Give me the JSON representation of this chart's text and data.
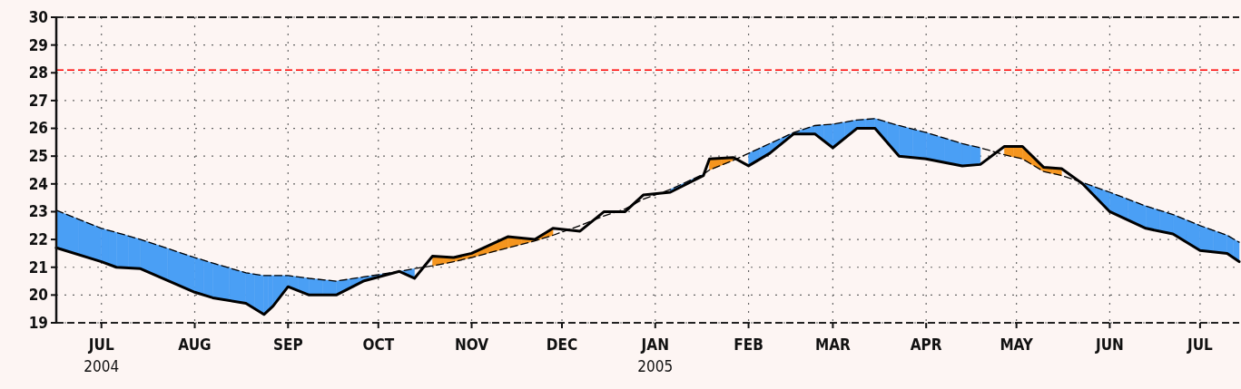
{
  "chart_data": {
    "type": "line",
    "x": [
      "2004-06-16",
      "2004-07-01",
      "2004-07-06",
      "2004-07-14",
      "2004-08-01",
      "2004-08-07",
      "2004-08-18",
      "2004-08-24",
      "2004-08-27",
      "2004-09-01",
      "2004-09-08",
      "2004-09-17",
      "2004-09-26",
      "2004-10-08",
      "2004-10-13",
      "2004-10-19",
      "2004-10-26",
      "2004-11-01",
      "2004-11-13",
      "2004-11-22",
      "2004-11-28",
      "2004-12-07",
      "2004-12-15",
      "2004-12-22",
      "2004-12-28",
      "2005-01-06",
      "2005-01-17",
      "2005-01-19",
      "2005-01-27",
      "2005-02-01",
      "2005-02-08",
      "2005-02-16",
      "2005-02-23",
      "2005-03-01",
      "2005-03-09",
      "2005-03-15",
      "2005-03-23",
      "2005-04-01",
      "2005-04-13",
      "2005-04-19",
      "2005-04-27",
      "2005-05-03",
      "2005-05-10",
      "2005-05-16",
      "2005-05-23",
      "2005-06-01",
      "2005-06-13",
      "2005-06-22",
      "2005-07-01",
      "2005-07-10",
      "2005-07-14"
    ],
    "series": [
      {
        "color": "#000000",
        "line_style": "dashed",
        "values": [
          23.05,
          22.4,
          22.25,
          22.0,
          21.35,
          21.15,
          20.8,
          20.7,
          20.7,
          20.7,
          20.6,
          20.5,
          20.65,
          20.85,
          20.95,
          21.05,
          21.2,
          21.35,
          21.7,
          21.95,
          22.15,
          22.5,
          22.85,
          23.1,
          23.45,
          23.8,
          24.35,
          24.5,
          24.85,
          25.1,
          25.45,
          25.85,
          26.1,
          26.15,
          26.3,
          26.35,
          26.1,
          25.85,
          25.45,
          25.3,
          25.05,
          24.9,
          24.45,
          24.3,
          24.05,
          23.7,
          23.2,
          22.9,
          22.5,
          22.15,
          21.9
        ],
        "upper": [
          23.05,
          22.4,
          22.25,
          22.0,
          21.35,
          21.15,
          20.8,
          20.7,
          20.7,
          20.7,
          20.6,
          20.5,
          20.65,
          20.85,
          20.95,
          null,
          null,
          null,
          null,
          null,
          null,
          null,
          null,
          null,
          null,
          23.8,
          24.35,
          null,
          null,
          25.1,
          25.45,
          25.85,
          26.1,
          26.15,
          26.3,
          26.35,
          26.1,
          25.85,
          25.45,
          25.3,
          null,
          null,
          null,
          null,
          24.05,
          23.7,
          23.2,
          22.9,
          22.5,
          22.15,
          21.9
        ],
        "lower": [
          21.7,
          21.2,
          21.0,
          20.95,
          20.1,
          19.9,
          19.7,
          19.3,
          19.6,
          20.3,
          20.0,
          20.0,
          20.5,
          20.85,
          20.6,
          null,
          null,
          null,
          null,
          null,
          null,
          null,
          null,
          null,
          null,
          23.7,
          24.3,
          null,
          null,
          24.65,
          25.1,
          25.8,
          25.8,
          25.3,
          26.0,
          26.0,
          25.0,
          24.9,
          24.65,
          24.7,
          null,
          null,
          null,
          null,
          24.0,
          23.0,
          22.4,
          22.2,
          21.6,
          21.5,
          21.2
        ],
        "colors": [
          "#4a9ff5",
          "#4a9ff5",
          "#4a9ff5",
          "#4a9ff5",
          "#4a9ff5",
          "#4a9ff5",
          "#4a9ff5",
          "#4a9ff5",
          "#4a9ff5",
          "#4a9ff5",
          "#4a9ff5",
          "#4a9ff5",
          "#4a9ff5",
          "#4a9ff5",
          "#4a9ff5",
          null,
          null,
          null,
          null,
          null,
          null,
          null,
          null,
          null,
          null,
          "#4a9ff5",
          "#4a9ff5",
          null,
          null,
          "#4a9ff5",
          "#4a9ff5",
          "#4a9ff5",
          "#4a9ff5",
          "#4a9ff5",
          "#4a9ff5",
          "#4a9ff5",
          "#4a9ff5",
          "#4a9ff5",
          "#4a9ff5",
          "#4a9ff5",
          null,
          null,
          null,
          null,
          "#4a9ff5",
          "#4a9ff5",
          "#4a9ff5",
          "#4a9ff5",
          "#4a9ff5",
          "#4a9ff5",
          "#4a9ff5"
        ]
      },
      {
        "color": "#000000",
        "line_style": "solid",
        "values": [
          21.7,
          21.2,
          21.0,
          20.95,
          20.1,
          19.9,
          19.7,
          19.3,
          19.6,
          20.3,
          20.0,
          20.0,
          20.5,
          20.85,
          20.6,
          21.4,
          21.35,
          21.5,
          22.1,
          22.0,
          22.4,
          22.3,
          23.0,
          23.0,
          23.6,
          23.7,
          24.3,
          24.9,
          24.95,
          24.65,
          25.1,
          25.8,
          25.8,
          25.3,
          26.0,
          26.0,
          25.0,
          24.9,
          24.65,
          24.7,
          25.35,
          25.35,
          24.6,
          24.55,
          24.0,
          23.0,
          22.4,
          22.2,
          21.6,
          21.5,
          21.2
        ],
        "upper": [
          null,
          null,
          null,
          null,
          null,
          null,
          null,
          null,
          null,
          null,
          null,
          null,
          null,
          null,
          null,
          21.4,
          21.35,
          21.5,
          22.1,
          22.0,
          22.4,
          null,
          null,
          null,
          null,
          null,
          null,
          24.9,
          24.95,
          null,
          null,
          null,
          null,
          null,
          null,
          null,
          null,
          null,
          null,
          null,
          25.35,
          25.35,
          24.6,
          24.55,
          null,
          null,
          null,
          null,
          null,
          null,
          null
        ],
        "lower": [
          null,
          null,
          null,
          null,
          null,
          null,
          null,
          null,
          null,
          null,
          null,
          null,
          null,
          null,
          null,
          21.05,
          21.2,
          21.35,
          21.7,
          21.95,
          22.15,
          null,
          null,
          null,
          null,
          null,
          null,
          24.5,
          24.85,
          null,
          null,
          null,
          null,
          null,
          null,
          null,
          null,
          null,
          null,
          null,
          25.05,
          24.9,
          24.45,
          24.3,
          null,
          null,
          null,
          null,
          null,
          null,
          null
        ],
        "colors": [
          null,
          null,
          null,
          null,
          null,
          null,
          null,
          null,
          null,
          null,
          null,
          null,
          null,
          null,
          null,
          "#f5951e",
          "#f5951e",
          "#f5951e",
          "#f5951e",
          "#f5951e",
          "#f5951e",
          null,
          null,
          null,
          null,
          null,
          null,
          "#f5951e",
          "#f5951e",
          null,
          null,
          null,
          null,
          null,
          null,
          null,
          null,
          null,
          null,
          null,
          "#f5951e",
          "#f5951e",
          "#f5951e",
          "#f5951e",
          null,
          null,
          null,
          null,
          null,
          null,
          null
        ]
      }
    ],
    "xlim": [
      "2004-06-16",
      "2005-07-14"
    ],
    "xticks": [
      {
        "value": "2004-07-01",
        "label": "JUL\n2004"
      },
      {
        "value": "2004-08-01",
        "label": "AUG"
      },
      {
        "value": "2004-09-01",
        "label": "SEP"
      },
      {
        "value": "2004-10-01",
        "label": "OCT"
      },
      {
        "value": "2004-11-01",
        "label": "NOV"
      },
      {
        "value": "2004-12-01",
        "label": "DEC"
      },
      {
        "value": "2005-01-01",
        "label": "JAN\n2005"
      },
      {
        "value": "2005-02-01",
        "label": "FEB"
      },
      {
        "value": "2005-03-01",
        "label": "MAR"
      },
      {
        "value": "2005-04-01",
        "label": "APR"
      },
      {
        "value": "2005-05-01",
        "label": "MAY"
      },
      {
        "value": "2005-06-01",
        "label": "JUN"
      },
      {
        "value": "2005-07-01",
        "label": "JUL"
      }
    ],
    "ylim": [
      19,
      30
    ],
    "yticks": [
      19,
      20,
      21,
      22,
      23,
      24,
      25,
      26,
      27,
      28,
      29,
      30
    ],
    "grid": true,
    "ref_lines": [
      {
        "axis": "y",
        "value": 28.1,
        "color": "#ff0000",
        "line_style": "dashed"
      }
    ]
  }
}
